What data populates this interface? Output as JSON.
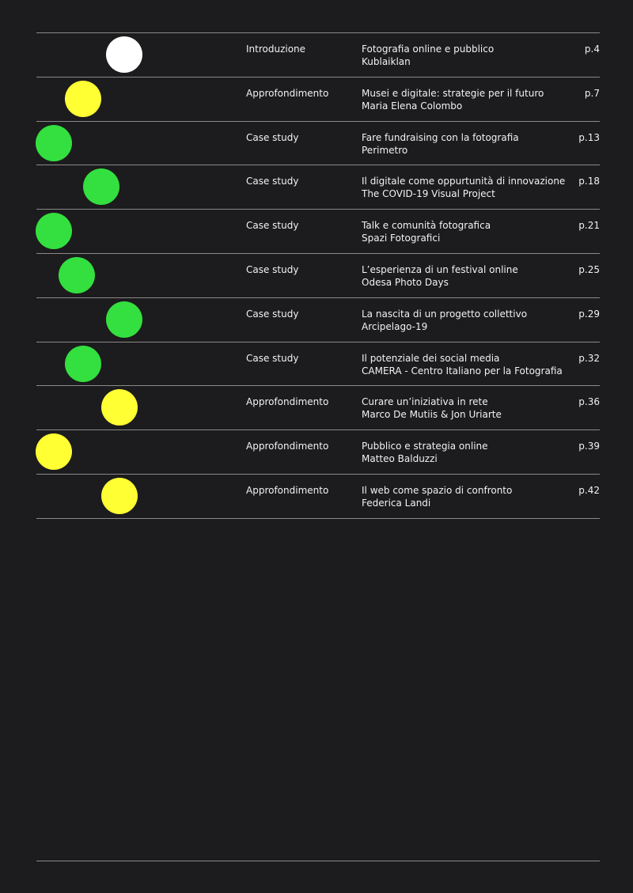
{
  "toc": {
    "rows": [
      {
        "category": "Introduzione",
        "title": "Fotografia online e pubblico",
        "author": "Kublaiklan",
        "page": "p.4"
      },
      {
        "category": "Approfondimento",
        "title": "Musei e digitale: strategie per il futuro",
        "author": "Maria Elena Colombo",
        "page": "p.7"
      },
      {
        "category": "Case study",
        "title": "Fare fundraising con la fotografia",
        "author": "Perimetro",
        "page": "p.13"
      },
      {
        "category": "Case study",
        "title": "Il digitale come oppurtunità di innovazione",
        "author": "The COVID-19 Visual Project",
        "page": "p.18"
      },
      {
        "category": "Case study",
        "title": "Talk e comunità fotografica",
        "author": "Spazi Fotografici",
        "page": "p.21"
      },
      {
        "category": "Case study",
        "title": "L’esperienza di un festival online",
        "author": "Odesa Photo Days",
        "page": "p.25"
      },
      {
        "category": "Case study",
        "title": "La nascita di un progetto collettivo",
        "author": "Arcipelago-19",
        "page": "p.29"
      },
      {
        "category": "Case study",
        "title": "Il potenziale dei social media",
        "author": "CAMERA - Centro Italiano per la Fotografia",
        "page": "p.32"
      },
      {
        "category": "Approfondimento",
        "title": "Curare un’iniziativa in rete",
        "author": "Marco De Mutiis & Jon Uriarte",
        "page": "p.36"
      },
      {
        "category": "Approfondimento",
        "title": "Pubblico e strategia online",
        "author": "Matteo Balduzzi",
        "page": "p.39"
      },
      {
        "category": "Approfondimento",
        "title": "Il web come spazio di confronto",
        "author": "Federica Landi",
        "page": "p.42"
      }
    ]
  }
}
